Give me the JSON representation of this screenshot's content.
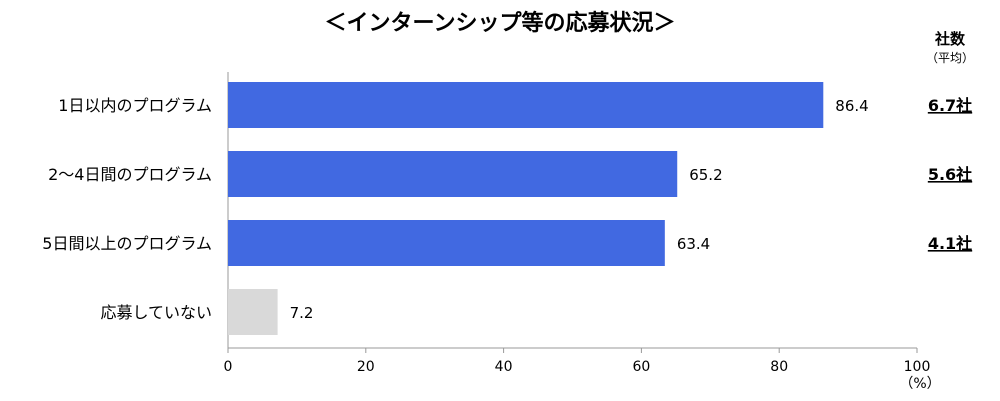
{
  "title": "＜インターンシップ等の応募状況＞",
  "side_header": "社数",
  "side_subheader": "（平均）",
  "x_unit": "（%）",
  "chart_data": {
    "type": "bar",
    "orientation": "horizontal",
    "title": "＜インターンシップ等の応募状況＞",
    "categories": [
      "1日以内のプログラム",
      "2～4日間のプログラム",
      "5日間以上のプログラム",
      "応募していない"
    ],
    "values": [
      86.4,
      65.2,
      63.4,
      7.2
    ],
    "value_labels": [
      "86.4",
      "65.2",
      "63.4",
      "7.2"
    ],
    "side_values": [
      "6.7社",
      "5.6社",
      "4.1社",
      ""
    ],
    "xlim": [
      0,
      100
    ],
    "xticks": [
      "0",
      "20",
      "40",
      "60",
      "80",
      "100"
    ],
    "xlabel": "（%）",
    "colors": [
      "#4169e1",
      "#4169e1",
      "#4169e1",
      "#d9d9d9"
    ],
    "grid": false
  }
}
